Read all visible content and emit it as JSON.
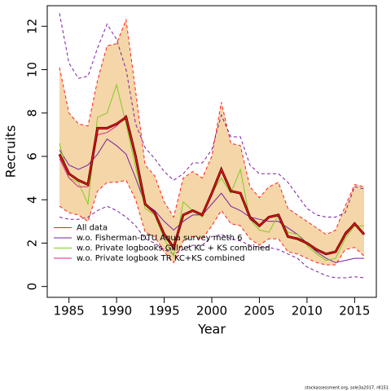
{
  "chart_data": {
    "type": "line",
    "x_label": "Year",
    "y_label": "Recruits",
    "x": [
      1984,
      1985,
      1986,
      1987,
      1988,
      1989,
      1990,
      1991,
      1992,
      1993,
      1994,
      1995,
      1996,
      1997,
      1998,
      1999,
      2000,
      2001,
      2002,
      2003,
      2004,
      2005,
      2006,
      2007,
      2008,
      2009,
      2010,
      2011,
      2012,
      2013,
      2014,
      2015,
      2016
    ],
    "xlim": [
      1982.72,
      2017.28
    ],
    "xticks": [
      1985,
      1990,
      1995,
      2000,
      2005,
      2010,
      2015
    ],
    "ylim": [
      -0.5,
      12.95
    ],
    "yticks": [
      0,
      2,
      4,
      6,
      8,
      10,
      12
    ],
    "band_color": "#f5d6a8",
    "estimate_color": "#6b0000",
    "legend": "bottom-left",
    "footnote": "stockassessment.org, sole3a2017, r8151",
    "series": [
      {
        "name": "All data",
        "color": "#ff2020",
        "values": [
          6.1,
          5.2,
          4.9,
          4.7,
          7.3,
          7.3,
          7.5,
          7.8,
          6.0,
          3.8,
          3.4,
          2.4,
          1.8,
          3.3,
          3.5,
          3.3,
          4.3,
          5.4,
          4.4,
          4.3,
          3.2,
          2.8,
          3.2,
          3.3,
          2.3,
          2.2,
          2.0,
          1.7,
          1.5,
          1.6,
          2.4,
          2.9,
          2.4
        ],
        "upper": [
          10.1,
          8.0,
          7.5,
          7.4,
          9.5,
          11.1,
          11.2,
          12.3,
          9.0,
          5.6,
          5.1,
          3.9,
          3.2,
          5.0,
          5.3,
          5.0,
          6.0,
          8.5,
          6.6,
          6.5,
          4.6,
          4.1,
          4.6,
          4.8,
          3.6,
          3.3,
          3.0,
          2.7,
          2.4,
          2.6,
          3.7,
          4.7,
          4.6
        ],
        "lower": [
          3.7,
          3.4,
          3.3,
          3.0,
          4.4,
          4.8,
          4.8,
          4.9,
          4.0,
          2.5,
          2.3,
          1.6,
          1.1,
          2.1,
          2.3,
          2.2,
          2.8,
          3.5,
          2.9,
          2.8,
          2.2,
          1.9,
          2.2,
          2.2,
          1.6,
          1.5,
          1.3,
          1.1,
          1.0,
          1.0,
          1.7,
          1.8,
          1.4
        ]
      },
      {
        "name": "w.o. Fisherman-DTU Aqua survey meth 6",
        "color": "#7a1fa2",
        "values": [
          6.3,
          5.6,
          5.4,
          5.6,
          6.1,
          6.8,
          6.5,
          6.1,
          5.0,
          3.8,
          3.5,
          3.0,
          2.6,
          3.0,
          3.3,
          3.3,
          3.8,
          4.3,
          3.7,
          3.5,
          3.2,
          3.1,
          3.0,
          3.0,
          2.7,
          2.4,
          2.0,
          1.6,
          1.3,
          1.1,
          1.2,
          1.3,
          1.3
        ],
        "upper": [
          12.6,
          10.3,
          9.6,
          9.7,
          11.0,
          12.1,
          11.4,
          10.0,
          7.5,
          6.4,
          5.9,
          5.3,
          4.9,
          5.2,
          5.7,
          5.7,
          6.3,
          7.9,
          6.9,
          6.9,
          5.6,
          5.2,
          5.2,
          5.2,
          4.8,
          4.2,
          3.6,
          3.3,
          3.2,
          3.2,
          3.4,
          4.6,
          4.5
        ],
        "lower": [
          3.2,
          3.1,
          3.1,
          3.2,
          3.5,
          3.7,
          3.5,
          3.2,
          2.8,
          2.2,
          2.0,
          1.7,
          1.5,
          1.7,
          1.9,
          1.9,
          2.3,
          2.4,
          2.2,
          2.1,
          1.9,
          1.8,
          1.8,
          1.7,
          1.5,
          1.3,
          0.9,
          0.7,
          0.5,
          0.4,
          0.4,
          0.45,
          0.4
        ]
      },
      {
        "name": "w.o. Private logbooks Gillnet KC + KS combined",
        "color": "#80cc20",
        "values": [
          6.6,
          5.0,
          4.8,
          3.8,
          7.8,
          8.0,
          9.3,
          7.5,
          5.5,
          3.6,
          3.3,
          2.2,
          1.4,
          3.9,
          3.5,
          3.2,
          4.3,
          5.0,
          4.3,
          5.4,
          3.1,
          2.6,
          2.5,
          3.3,
          2.5,
          2.4,
          1.9,
          1.5,
          1.2,
          1.3,
          2.2,
          2.8,
          2.8
        ]
      },
      {
        "name": "w.o. Private logbook TR KC+KS combined",
        "color": "#e0208a",
        "values": [
          5.9,
          5.0,
          4.6,
          4.6,
          7.0,
          7.1,
          7.4,
          7.9,
          6.0,
          3.8,
          3.4,
          2.4,
          1.7,
          3.3,
          3.5,
          3.3,
          4.2,
          5.4,
          4.4,
          4.3,
          3.1,
          2.8,
          3.2,
          3.3,
          2.3,
          2.2,
          2.0,
          1.7,
          1.5,
          1.6,
          2.5,
          2.9,
          2.4
        ]
      }
    ]
  }
}
